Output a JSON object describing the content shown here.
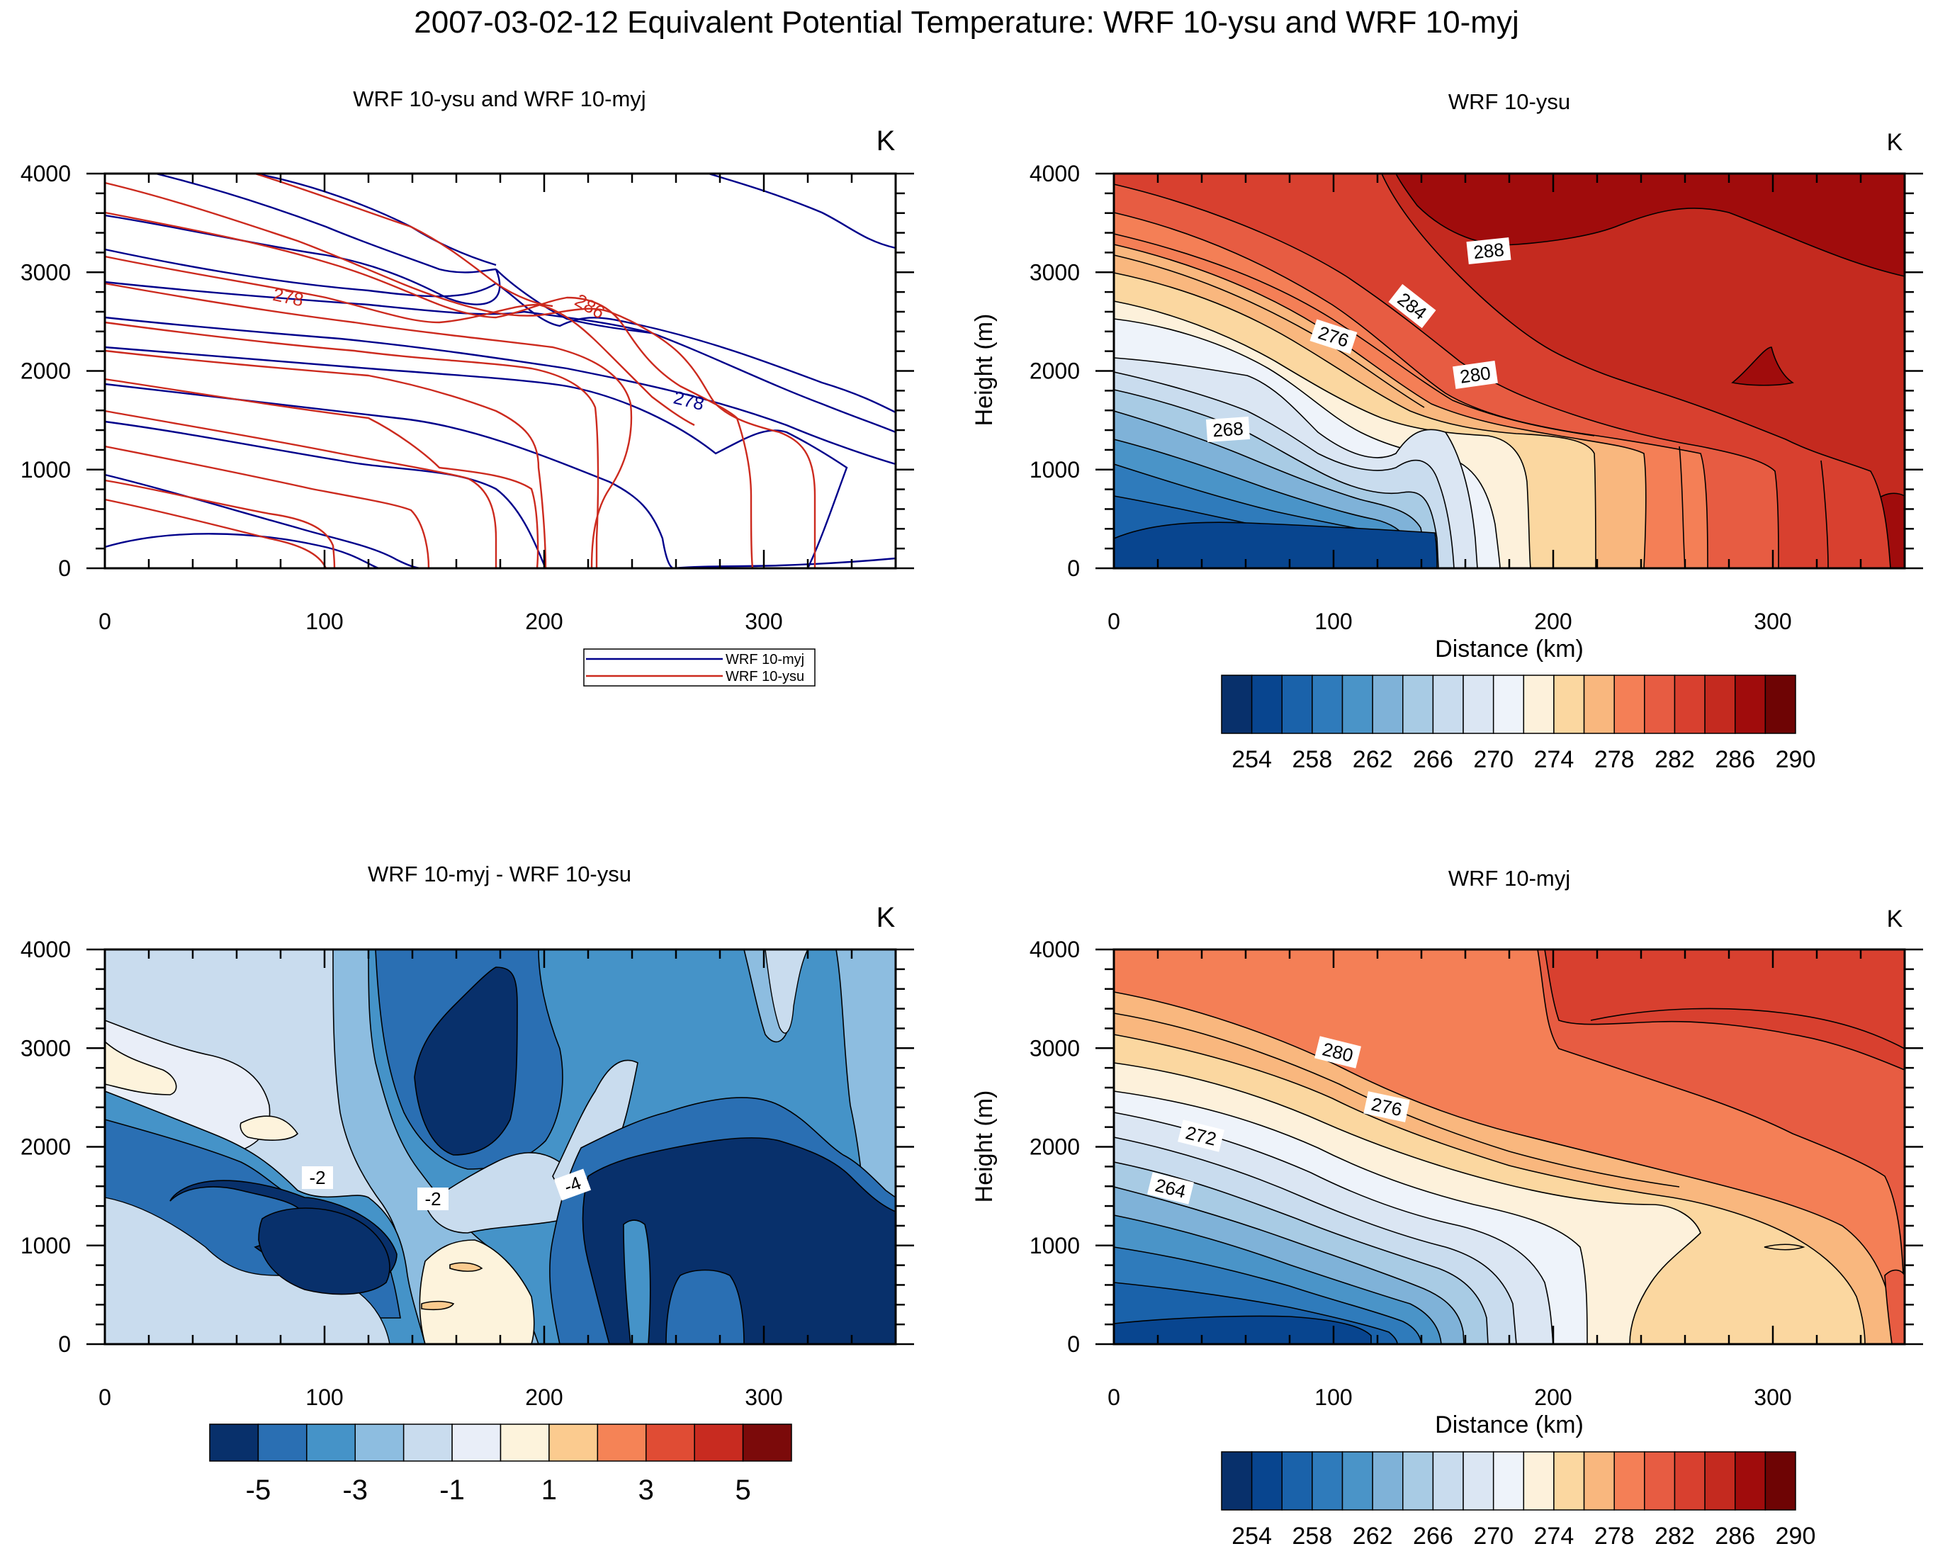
{
  "title": "2007-03-02-12 Equivalent Potential Temperature: WRF 10-ysu and WRF 10-myj",
  "colors": {
    "myj_line": "#00008b",
    "ysu_line": "#cc2a1e",
    "palette": [
      "#08306b",
      "#08458f",
      "#1a62aa",
      "#2f7bbb",
      "#4a94c8",
      "#7fb2d8",
      "#a8cbe4",
      "#c9dcee",
      "#dbe6f3",
      "#eef3fa",
      "#fdf1db",
      "#fbd7a0",
      "#f9b77e",
      "#f47f56",
      "#e75c42",
      "#d8402f",
      "#c42a1f",
      "#a00c0c",
      "#6e0404"
    ],
    "diff_palette": [
      "#08306b",
      "#2a6fb3",
      "#4593c8",
      "#8dbde0",
      "#c9dcee",
      "#e9eef8",
      "#fdf3dc",
      "#fbcb8f",
      "#f58356",
      "#e04c34",
      "#c82b20",
      "#7b0a0a"
    ]
  },
  "chart_data": [
    {
      "id": "overlay",
      "type": "contour-lines",
      "title": "WRF 10-ysu and WRF 10-myj",
      "unit": "K",
      "xlim": [
        0,
        360
      ],
      "ylim": [
        0,
        4000
      ],
      "xticks": [
        0,
        100,
        200,
        300
      ],
      "yticks": [
        0,
        1000,
        2000,
        3000,
        4000
      ],
      "legend": [
        "WRF 10-myj",
        "WRF 10-ysu"
      ],
      "line_labels": [
        {
          "text": "278",
          "series": "ysu",
          "x": 82,
          "y": 2740
        },
        {
          "text": "286",
          "series": "ysu",
          "x": 220,
          "y": 2650
        },
        {
          "text": "278",
          "series": "myj",
          "x": 265,
          "y": 1730
        }
      ]
    },
    {
      "id": "ysu",
      "type": "filled-contour",
      "title": "WRF 10-ysu",
      "unit": "K",
      "xlabel": "Distance (km)",
      "ylabel": "Height (m)",
      "xlim": [
        0,
        360
      ],
      "ylim": [
        0,
        4000
      ],
      "xticks": [
        0,
        100,
        200,
        300
      ],
      "yticks": [
        0,
        1000,
        2000,
        3000,
        4000
      ],
      "levels": [
        254,
        256,
        258,
        260,
        262,
        264,
        266,
        268,
        270,
        272,
        274,
        276,
        278,
        280,
        282,
        284,
        286,
        288,
        290
      ],
      "colorbar_labels": [
        "254",
        "258",
        "262",
        "266",
        "270",
        "274",
        "278",
        "282",
        "286",
        "290"
      ],
      "line_labels": [
        {
          "text": "288",
          "x": 172,
          "y": 3230
        },
        {
          "text": "284",
          "x": 136,
          "y": 2680
        },
        {
          "text": "276",
          "x": 100,
          "y": 2350
        },
        {
          "text": "280",
          "x": 165,
          "y": 1980
        },
        {
          "text": "268",
          "x": 52,
          "y": 1420
        }
      ]
    },
    {
      "id": "diff",
      "type": "filled-contour",
      "title": "WRF 10-myj - WRF 10-ysu",
      "unit": "K",
      "xlim": [
        0,
        360
      ],
      "ylim": [
        0,
        4000
      ],
      "xticks": [
        0,
        100,
        200,
        300
      ],
      "yticks": [
        0,
        1000,
        2000,
        3000,
        4000
      ],
      "levels": [
        -6,
        -5,
        -4,
        -3,
        -2,
        -1,
        0,
        1,
        2,
        3,
        4,
        5,
        6
      ],
      "colorbar_labels": [
        "-5",
        "-3",
        "-1",
        "1",
        "3",
        "5"
      ],
      "line_labels": [
        {
          "text": "-2",
          "x": 96,
          "y": 1700
        },
        {
          "text": "-2",
          "x": 150,
          "y": 1470
        },
        {
          "text": "-4",
          "x": 212,
          "y": 1630
        }
      ]
    },
    {
      "id": "myj",
      "type": "filled-contour",
      "title": "WRF 10-myj",
      "unit": "K",
      "xlabel": "Distance (km)",
      "ylabel": "Height (m)",
      "xlim": [
        0,
        360
      ],
      "ylim": [
        0,
        4000
      ],
      "xticks": [
        0,
        100,
        200,
        300
      ],
      "yticks": [
        0,
        1000,
        2000,
        3000,
        4000
      ],
      "levels": [
        254,
        256,
        258,
        260,
        262,
        264,
        266,
        268,
        270,
        272,
        274,
        276,
        278,
        280,
        282,
        284,
        286,
        288,
        290
      ],
      "colorbar_labels": [
        "254",
        "258",
        "262",
        "266",
        "270",
        "274",
        "278",
        "282",
        "286",
        "290"
      ],
      "line_labels": [
        {
          "text": "280",
          "x": 128,
          "y": 2980
        },
        {
          "text": "276",
          "x": 124,
          "y": 2420
        },
        {
          "text": "272",
          "x": 40,
          "y": 2140
        },
        {
          "text": "264",
          "x": 26,
          "y": 1620
        }
      ]
    }
  ]
}
